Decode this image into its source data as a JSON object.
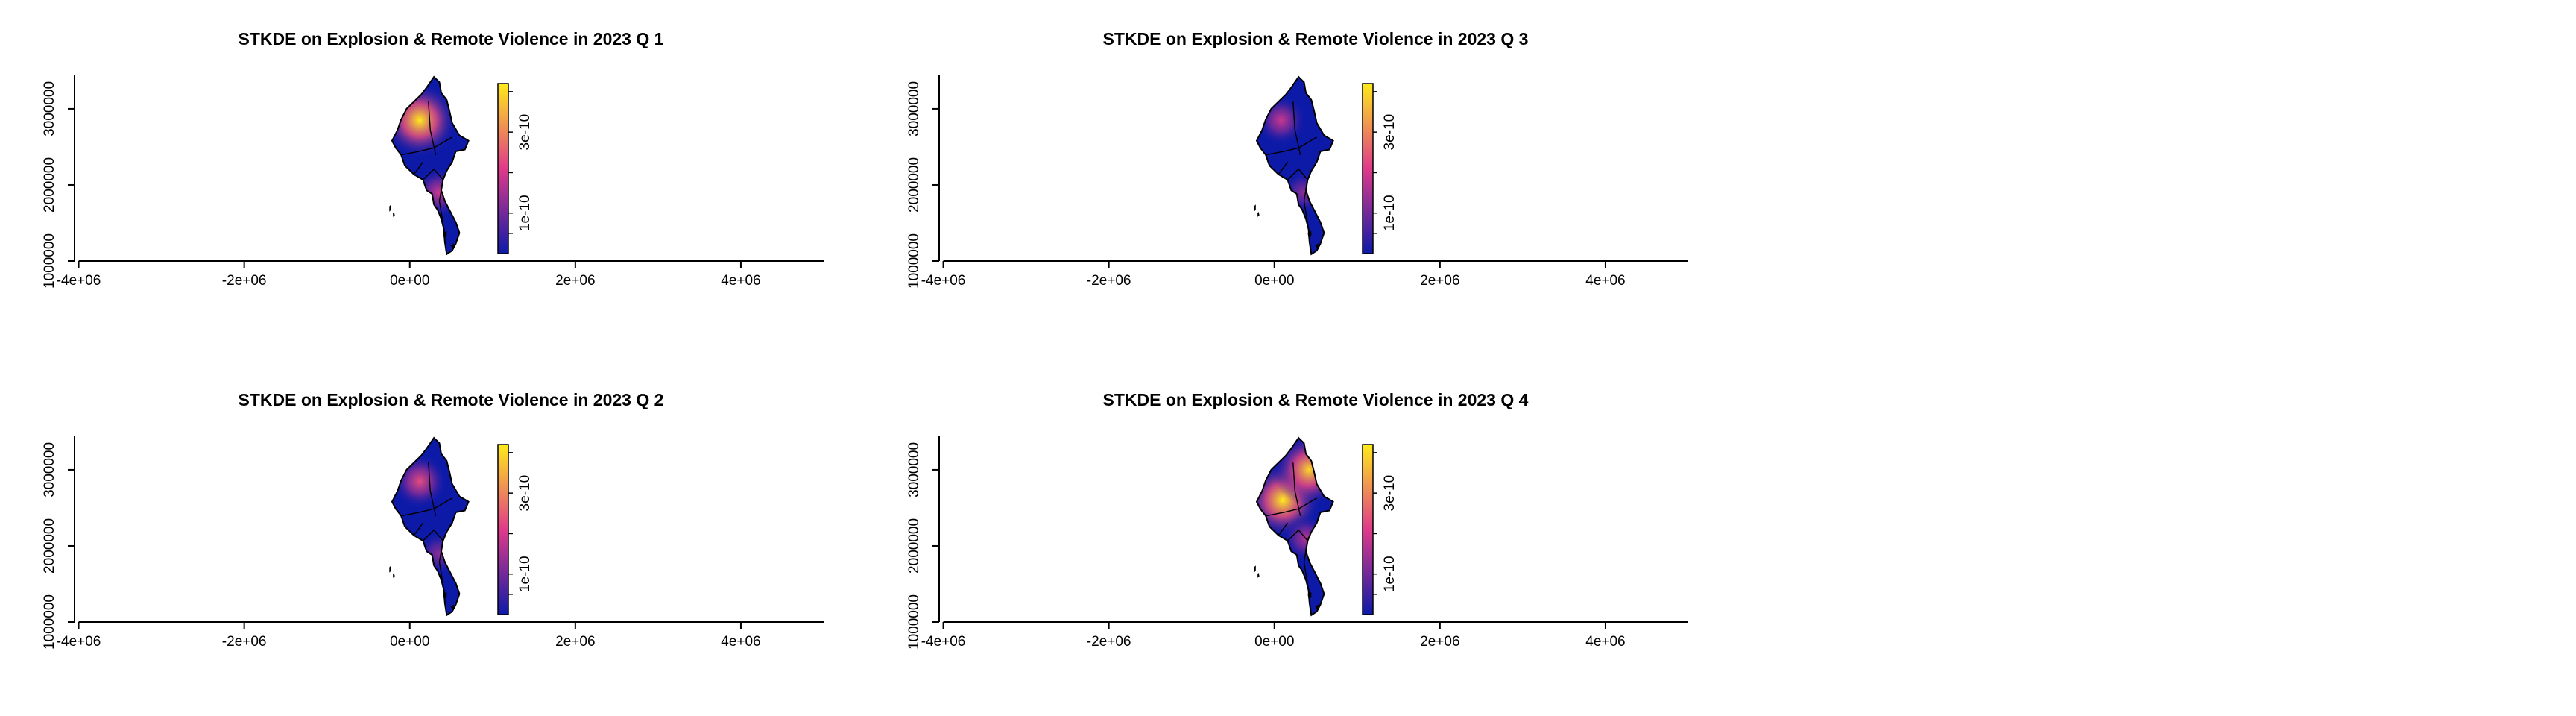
{
  "chart_data": [
    {
      "type": "heatmap",
      "title": "STKDE on Explosion & Remote Violence in 2023 Q 1",
      "x_ticks": [
        "-4e+06",
        "-2e+06",
        "0e+00",
        "2e+06",
        "4e+06"
      ],
      "x_tick_values": [
        -4000000,
        -2000000,
        0,
        2000000,
        4000000
      ],
      "y_ticks": [
        "1000000",
        "2000000",
        "3000000"
      ],
      "y_tick_values": [
        1000000,
        2000000,
        3000000
      ],
      "xlim": [
        -4050000,
        5000000
      ],
      "ylim": [
        1000000,
        3450000
      ],
      "legend_ticks": [
        "1e-10",
        "3e-10"
      ],
      "legend_tick_values": [
        1e-10,
        3e-10
      ],
      "legend_range": [
        0,
        4.2e-10
      ],
      "hotspots": [
        {
          "x": 120000,
          "y": 2850000,
          "intensity": 1.0
        },
        {
          "x": 350000,
          "y": 1900000,
          "intensity": 0.45
        }
      ]
    },
    {
      "type": "heatmap",
      "title": "STKDE on Explosion & Remote Violence in 2023 Q 2",
      "x_ticks": [
        "-4e+06",
        "-2e+06",
        "0e+00",
        "2e+06",
        "4e+06"
      ],
      "x_tick_values": [
        -4000000,
        -2000000,
        0,
        2000000,
        4000000
      ],
      "y_ticks": [
        "1000000",
        "2000000",
        "3000000"
      ],
      "y_tick_values": [
        1000000,
        2000000,
        3000000
      ],
      "xlim": [
        -4050000,
        5000000
      ],
      "ylim": [
        1000000,
        3450000
      ],
      "legend_ticks": [
        "1e-10",
        "3e-10"
      ],
      "legend_tick_values": [
        1e-10,
        3e-10
      ],
      "legend_range": [
        0,
        4.2e-10
      ],
      "hotspots": [
        {
          "x": 120000,
          "y": 2850000,
          "intensity": 0.55
        },
        {
          "x": 350000,
          "y": 1900000,
          "intensity": 0.3
        }
      ]
    },
    {
      "type": "heatmap",
      "title": "STKDE on Explosion & Remote Violence in 2023 Q 3",
      "x_ticks": [
        "-4e+06",
        "-2e+06",
        "0e+00",
        "2e+06",
        "4e+06"
      ],
      "x_tick_values": [
        -4000000,
        -2000000,
        0,
        2000000,
        4000000
      ],
      "y_ticks": [
        "1000000",
        "2000000",
        "3000000"
      ],
      "y_tick_values": [
        1000000,
        2000000,
        3000000
      ],
      "xlim": [
        -4050000,
        5000000
      ],
      "ylim": [
        1000000,
        3450000
      ],
      "legend_ticks": [
        "1e-10",
        "3e-10"
      ],
      "legend_tick_values": [
        1e-10,
        3e-10
      ],
      "legend_range": [
        0,
        4.2e-10
      ],
      "hotspots": [
        {
          "x": 80000,
          "y": 2850000,
          "intensity": 0.45
        },
        {
          "x": 350000,
          "y": 1900000,
          "intensity": 0.3
        }
      ]
    },
    {
      "type": "heatmap",
      "title": "STKDE on Explosion & Remote Violence in 2023 Q 4",
      "x_ticks": [
        "-4e+06",
        "-2e+06",
        "0e+00",
        "2e+06",
        "4e+06"
      ],
      "x_tick_values": [
        -4000000,
        -2000000,
        0,
        2000000,
        4000000
      ],
      "y_ticks": [
        "1000000",
        "2000000",
        "3000000"
      ],
      "y_tick_values": [
        1000000,
        2000000,
        3000000
      ],
      "xlim": [
        -4050000,
        5000000
      ],
      "ylim": [
        1000000,
        3450000
      ],
      "legend_ticks": [
        "1e-10",
        "3e-10"
      ],
      "legend_tick_values": [
        1e-10,
        3e-10
      ],
      "legend_range": [
        0,
        4.2e-10
      ],
      "hotspots": [
        {
          "x": 100000,
          "y": 2600000,
          "intensity": 1.0
        },
        {
          "x": 420000,
          "y": 3000000,
          "intensity": 0.95
        },
        {
          "x": 380000,
          "y": 2100000,
          "intensity": 0.4
        }
      ]
    }
  ],
  "colors": {
    "low": "#0d1aa8",
    "mid": "#e03a8a",
    "high": "#ffeb1a",
    "background": "#ffffff",
    "outline": "#000000"
  }
}
